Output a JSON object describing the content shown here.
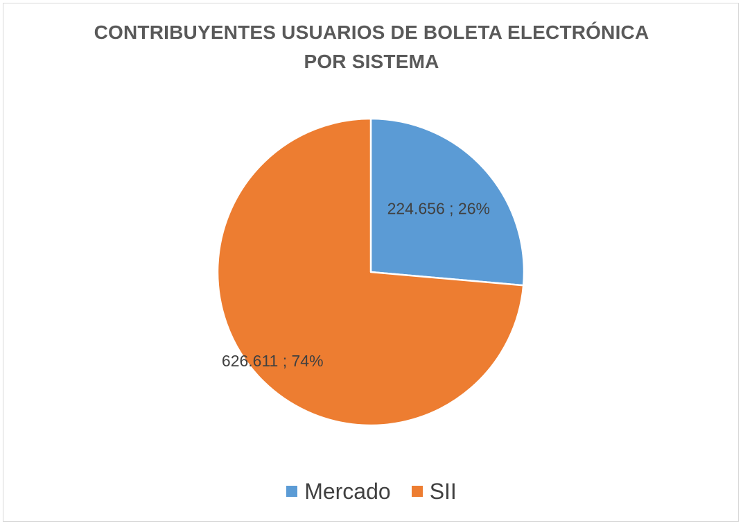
{
  "chart_data": {
    "type": "pie",
    "title": "CONTRIBUYENTES USUARIOS DE BOLETA ELECTRÓNICA POR SISTEMA",
    "slices": [
      {
        "label": "Mercado",
        "value": 224656,
        "percent": 26,
        "data_label": "224.656 ; 26%",
        "color": "#5B9BD5"
      },
      {
        "label": "SII",
        "value": 626611,
        "percent": 74,
        "data_label": "626.611 ; 74%",
        "color": "#ED7D31"
      }
    ],
    "legend_position": "bottom"
  }
}
